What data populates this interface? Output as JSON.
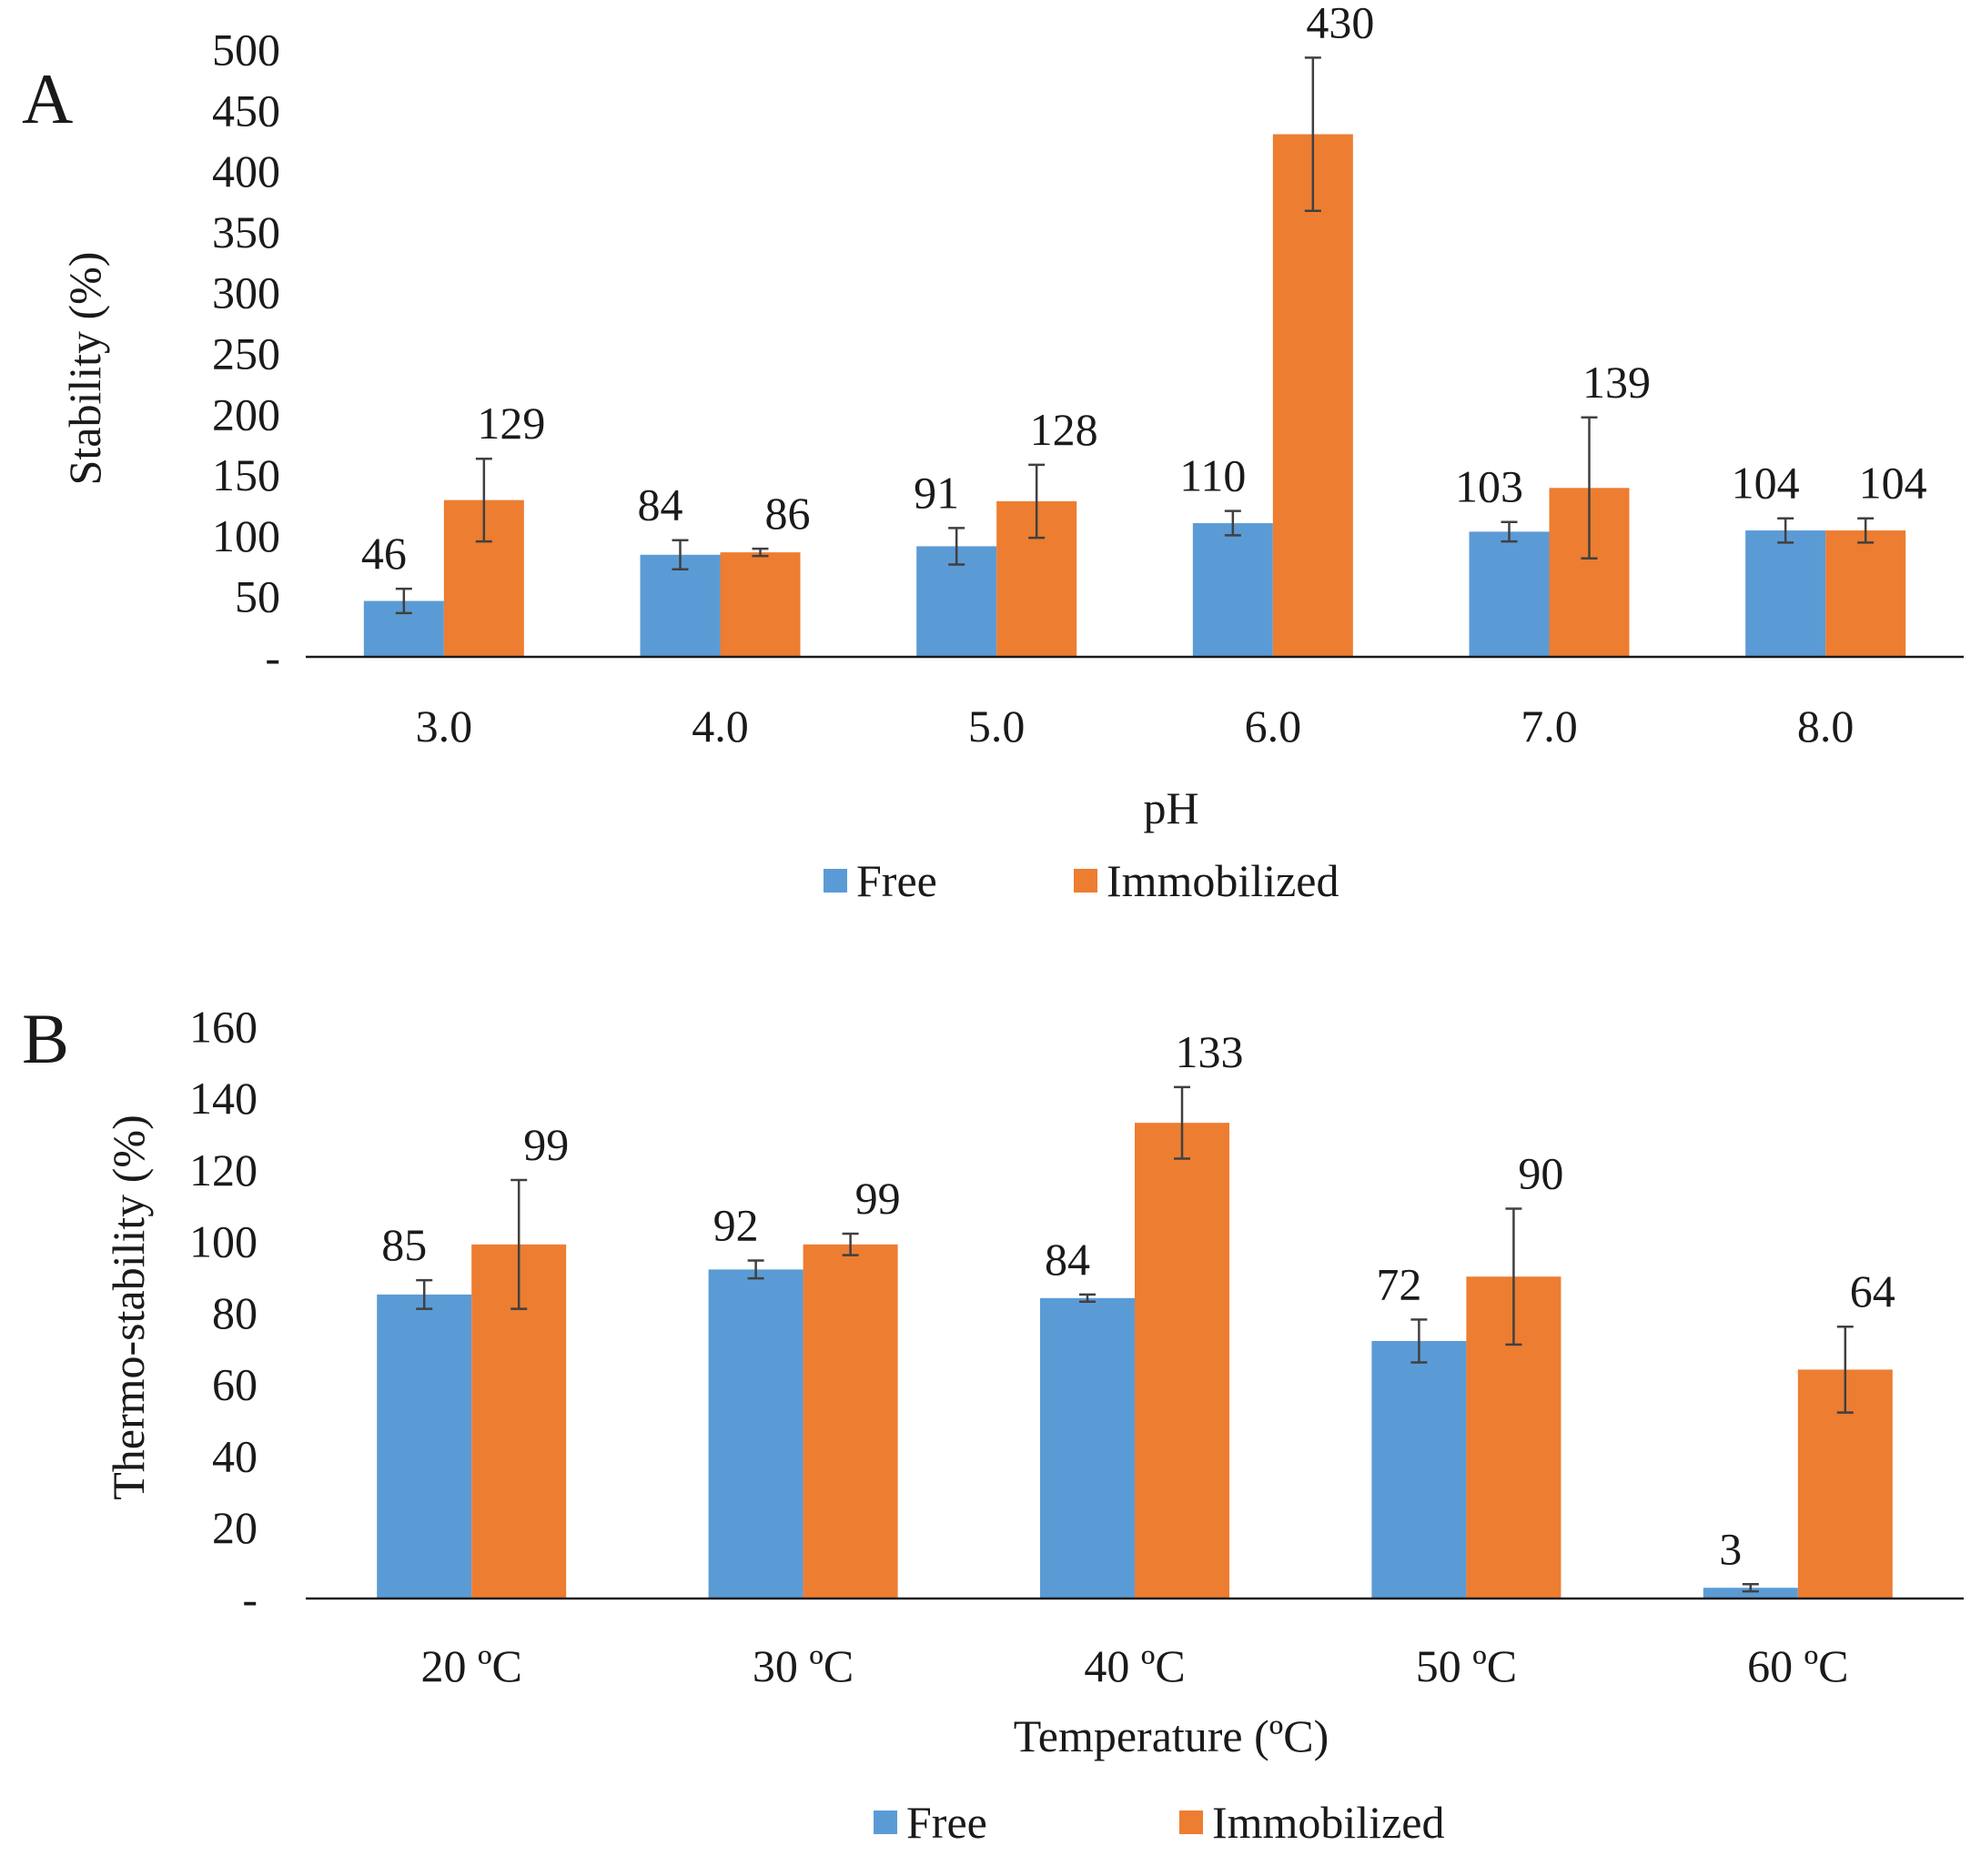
{
  "colors": {
    "free": "#5b9bd5",
    "immobilized": "#ed7d31",
    "axis": "#1a1a1a",
    "error_bar": "#404040",
    "leader": "#9a9a9a"
  },
  "chart_data": [
    {
      "type": "bar",
      "panel_label": "A",
      "xlabel": "pH",
      "ylabel": "Stability (%)",
      "ylim": [
        0,
        500
      ],
      "yticks": [
        "-",
        "50",
        "100",
        "150",
        "200",
        "250",
        "300",
        "350",
        "400",
        "450",
        "500"
      ],
      "grid": false,
      "legend_position": "bottom",
      "categories": [
        "3.0",
        "4.0",
        "5.0",
        "6.0",
        "7.0",
        "8.0"
      ],
      "series": [
        {
          "name": "Free",
          "values": [
            46,
            84,
            91,
            110,
            103,
            104
          ],
          "errors": [
            10,
            12,
            15,
            10,
            8,
            10
          ],
          "labels": [
            "46",
            "84",
            "91",
            "110",
            "103",
            "104"
          ]
        },
        {
          "name": "Immobilized",
          "values": [
            129,
            86,
            128,
            430,
            139,
            104
          ],
          "errors": [
            34,
            3,
            30,
            63,
            58,
            10
          ],
          "labels": [
            "129",
            "86",
            "128",
            "430",
            "139",
            "104"
          ]
        }
      ]
    },
    {
      "type": "bar",
      "panel_label": "B",
      "xlabel": "Temperature (ºC)",
      "ylabel": "Thermo-stability (%)",
      "ylim": [
        0,
        160
      ],
      "yticks": [
        "-",
        "20",
        "40",
        "60",
        "80",
        "100",
        "120",
        "140",
        "160"
      ],
      "grid": false,
      "legend_position": "bottom",
      "categories": [
        "20 ºC",
        "30 ºC",
        "40 ºC",
        "50 ºC",
        "60 ºC"
      ],
      "series": [
        {
          "name": "Free",
          "values": [
            85,
            92,
            84,
            72,
            3
          ],
          "errors": [
            4,
            2.5,
            1,
            6,
            1
          ],
          "labels": [
            "85",
            "92",
            "84",
            "72",
            "3"
          ]
        },
        {
          "name": "Immobilized",
          "values": [
            99,
            99,
            133,
            90,
            64
          ],
          "errors": [
            18,
            3,
            10,
            19,
            12
          ],
          "labels": [
            "99",
            "99",
            "133",
            "90",
            "64"
          ]
        }
      ]
    }
  ]
}
